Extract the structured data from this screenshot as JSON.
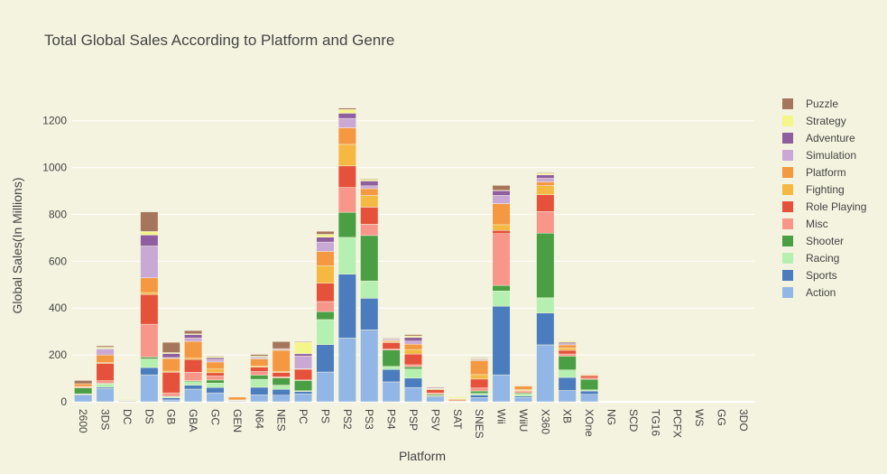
{
  "chart_data": {
    "type": "bar",
    "stacked": true,
    "title": "Total Global Sales According to Platform and Genre",
    "xlabel": "Platform",
    "ylabel": "Global Sales(In Millions)",
    "ylim": [
      0,
      1330
    ],
    "yticks": [
      0,
      200,
      400,
      600,
      800,
      1000,
      1200
    ],
    "grid": true,
    "legend_position": "right",
    "categories": [
      "2600",
      "3DS",
      "DC",
      "DS",
      "GB",
      "GBA",
      "GC",
      "GEN",
      "N64",
      "NES",
      "PC",
      "PS",
      "PS2",
      "PS3",
      "PS4",
      "PSP",
      "PSV",
      "SAT",
      "SNES",
      "Wii",
      "WiiU",
      "X360",
      "XB",
      "XOne",
      "NG",
      "SCD",
      "TG16",
      "PCFX",
      "WS",
      "GG",
      "3DO"
    ],
    "series": [
      {
        "name": "Action",
        "color": "#92b7e6",
        "values": [
          29,
          56,
          1,
          115,
          8,
          54,
          38,
          3,
          30,
          28,
          34,
          127,
          272,
          307,
          85,
          61,
          20,
          1,
          18,
          115,
          18,
          243,
          48,
          32,
          0,
          0,
          0,
          0,
          0,
          0,
          0
        ]
      },
      {
        "name": "Sports",
        "color": "#4a7cbe",
        "values": [
          3,
          6,
          3,
          31,
          9,
          17,
          23,
          1,
          32,
          25,
          10,
          117,
          273,
          135,
          53,
          40,
          4,
          2,
          11,
          293,
          6,
          136,
          56,
          14,
          0,
          0,
          0,
          0,
          0,
          0,
          0
        ]
      },
      {
        "name": "Racing",
        "color": "#b5f0b0",
        "values": [
          2,
          14,
          2,
          37,
          5,
          15,
          19,
          2,
          34,
          18,
          3,
          107,
          157,
          74,
          13,
          39,
          3,
          2,
          7,
          65,
          9,
          65,
          32,
          5,
          0,
          0,
          0,
          0,
          0,
          0,
          0
        ]
      },
      {
        "name": "Shooter",
        "color": "#4a9e43",
        "values": [
          25,
          3,
          0,
          8,
          1,
          4,
          13,
          0,
          18,
          31,
          44,
          34,
          107,
          194,
          70,
          9,
          5,
          0,
          10,
          24,
          5,
          276,
          59,
          45,
          0,
          0,
          0,
          0,
          0,
          0,
          0
        ]
      },
      {
        "name": "Misc",
        "color": "#f8968a",
        "values": [
          4,
          11,
          1,
          140,
          15,
          36,
          17,
          1,
          15,
          5,
          2,
          43,
          106,
          48,
          4,
          9,
          6,
          0,
          13,
          221,
          8,
          92,
          9,
          5,
          0,
          0,
          0,
          0,
          0,
          0,
          0
        ]
      },
      {
        "name": "Role Playing",
        "color": "#e6513b",
        "values": [
          1,
          74,
          2,
          127,
          88,
          55,
          14,
          1,
          19,
          18,
          46,
          78,
          92,
          73,
          28,
          46,
          14,
          4,
          38,
          14,
          2,
          72,
          16,
          10,
          0,
          0,
          0,
          0,
          0,
          0,
          0
        ]
      },
      {
        "name": "Fighting",
        "color": "#f5b942",
        "values": [
          1,
          3,
          2,
          8,
          5,
          5,
          16,
          0,
          5,
          4,
          0,
          74,
          92,
          50,
          5,
          19,
          3,
          4,
          19,
          24,
          4,
          39,
          10,
          3,
          0,
          0,
          0,
          0,
          0,
          0,
          0
        ]
      },
      {
        "name": "Platform",
        "color": "#f59842",
        "values": [
          12,
          33,
          1,
          63,
          54,
          72,
          30,
          12,
          30,
          91,
          2,
          62,
          71,
          29,
          3,
          23,
          2,
          2,
          60,
          90,
          15,
          16,
          13,
          3,
          0,
          0,
          0,
          0,
          0,
          0,
          0
        ]
      },
      {
        "name": "Simulation",
        "color": "#c9a8d6",
        "values": [
          0,
          26,
          0,
          136,
          4,
          14,
          11,
          0,
          4,
          2,
          54,
          40,
          40,
          12,
          3,
          13,
          1,
          1,
          3,
          35,
          2,
          15,
          5,
          1,
          0,
          0,
          0,
          0,
          0,
          0,
          0
        ]
      },
      {
        "name": "Adventure",
        "color": "#8e5e9f",
        "values": [
          0,
          2,
          1,
          47,
          17,
          15,
          7,
          0,
          4,
          4,
          10,
          21,
          22,
          21,
          4,
          16,
          4,
          0,
          3,
          20,
          2,
          15,
          6,
          2,
          0,
          0,
          0,
          0,
          0,
          0,
          0
        ]
      },
      {
        "name": "Strategy",
        "color": "#f4f68a",
        "values": [
          0,
          5,
          1,
          15,
          4,
          3,
          5,
          0,
          4,
          1,
          49,
          12,
          16,
          7,
          2,
          6,
          1,
          5,
          3,
          2,
          2,
          6,
          6,
          0,
          0,
          0,
          0,
          0,
          0,
          0,
          0
        ]
      },
      {
        "name": "Puzzle",
        "color": "#a6765c",
        "values": [
          14,
          6,
          0,
          84,
          44,
          14,
          3,
          0,
          7,
          30,
          3,
          13,
          6,
          3,
          3,
          6,
          2,
          0,
          3,
          21,
          1,
          3,
          1,
          0,
          0,
          0,
          0,
          0,
          0,
          0,
          0
        ]
      }
    ]
  }
}
